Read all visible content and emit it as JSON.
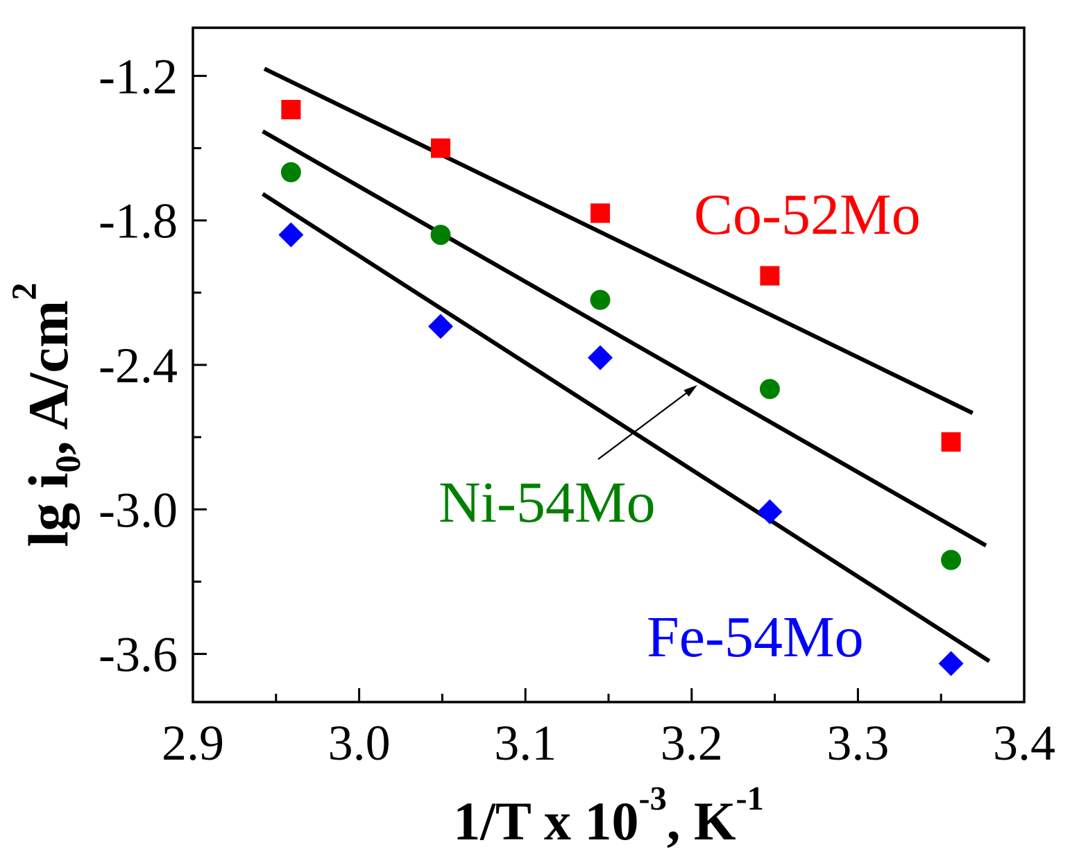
{
  "chart_data": {
    "type": "scatter",
    "xlabel": {
      "parts": [
        {
          "t": "1/T x 10"
        },
        {
          "t": "-3",
          "sup": true
        },
        {
          "t": ", K"
        },
        {
          "t": "-1",
          "sup": true
        }
      ]
    },
    "ylabel": {
      "parts": [
        {
          "t": "lg i"
        },
        {
          "t": "0",
          "sub": true
        },
        {
          "t": ", A/cm"
        },
        {
          "t": "2",
          "sup": true
        }
      ]
    },
    "xlim": [
      2.9,
      3.4
    ],
    "ylim": [
      -3.8,
      -1.0
    ],
    "x_ticks": [
      "2.9",
      "3.0",
      "3.1",
      "3.2",
      "3.3",
      "3.4"
    ],
    "x_minor_ticks": [
      2.95,
      3.05,
      3.15,
      3.25,
      3.35
    ],
    "y_ticks": [
      "-1.2",
      "-1.8",
      "-2.4",
      "-3.0",
      "-3.6"
    ],
    "y_minor_ticks": [
      -1.5,
      -2.1,
      -2.7,
      -3.3
    ],
    "grid": false,
    "line_color": "#000000",
    "series": [
      {
        "name": "Co-52Mo",
        "color": "#ff0000",
        "x": [
          2.959,
          3.049,
          3.145,
          3.247,
          3.356
        ],
        "y": [
          -1.34,
          -1.5,
          -1.77,
          -2.03,
          -2.72
        ],
        "fit": {
          "x": [
            2.943,
            3.369
          ],
          "y": [
            -1.17,
            -2.6
          ]
        }
      },
      {
        "name": "Ni-54Mo",
        "color": "#008000",
        "x": [
          2.959,
          3.049,
          3.145,
          3.247,
          3.356
        ],
        "y": [
          -1.6,
          -1.86,
          -2.13,
          -2.5,
          -3.21
        ],
        "fit": {
          "x": [
            2.942,
            3.377
          ],
          "y": [
            -1.43,
            -3.15
          ]
        }
      },
      {
        "name": "Fe-54Mo",
        "color": "#0000ff",
        "x": [
          2.959,
          3.049,
          3.145,
          3.247,
          3.356
        ],
        "y": [
          -1.86,
          -2.24,
          -2.37,
          -3.01,
          -3.64
        ],
        "fit": {
          "x": [
            2.942,
            3.379
          ],
          "y": [
            -1.69,
            -3.63
          ]
        }
      }
    ]
  }
}
